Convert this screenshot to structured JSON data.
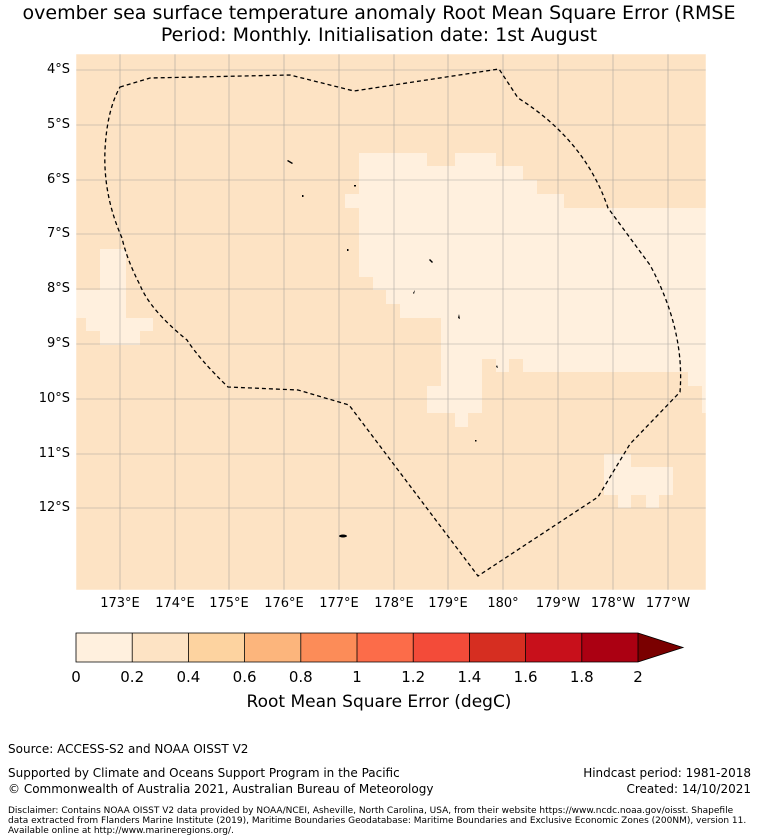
{
  "title": {
    "line1": "ovember sea surface temperature anomaly Root Mean Square Error (RMSE",
    "line2": "Period: Monthly. Initialisation date: 1st August"
  },
  "map": {
    "lat_labels": [
      "4°S",
      "5°S",
      "6°S",
      "7°S",
      "8°S",
      "9°S",
      "10°S",
      "11°S",
      "12°S"
    ],
    "lon_labels": [
      "173°E",
      "174°E",
      "175°E",
      "176°E",
      "177°E",
      "178°E",
      "179°E",
      "180°",
      "179°W",
      "178°W",
      "177°W"
    ],
    "background_color": "#fde3c4",
    "low_value_color": "#fff0de"
  },
  "colorbar": {
    "ticks": [
      "0",
      "0.2",
      "0.4",
      "0.6",
      "0.8",
      "1",
      "1.2",
      "1.4",
      "1.6",
      "1.8",
      "2"
    ],
    "colors": [
      "#fff0de",
      "#fde3c4",
      "#fdd3a0",
      "#fcb57c",
      "#fc8c58",
      "#fc6c49",
      "#f34b39",
      "#d62e21",
      "#c8101b",
      "#ab0012"
    ],
    "extend_color": "#7a0000",
    "label": "Root Mean Square Error (degC)"
  },
  "footer": {
    "source": "Source: ACCESS-S2 and NOAA OISST V2",
    "supported": "Supported by Climate and Oceans Support Program in the Pacific",
    "copyright": "© Commonwealth of Australia 2021, Australian Bureau of Meteorology",
    "hindcast": "Hindcast period: 1981-2018",
    "created": "Created: 14/10/2021",
    "disclaimer": "Disclaimer: Contains NOAA OISST V2 data provided by NOAA/NCEI, Asheville, North Carolina, USA, from their website https://www.ncdc.noaa.gov/oisst. Shapefile data extracted from Flanders Marine Institute (2019), Maritime Boundaries Geodatabase: Maritime Boundaries and Exclusive Economic Zones (200NM), version 11. Available online at http://www.marineregions.org/."
  }
}
